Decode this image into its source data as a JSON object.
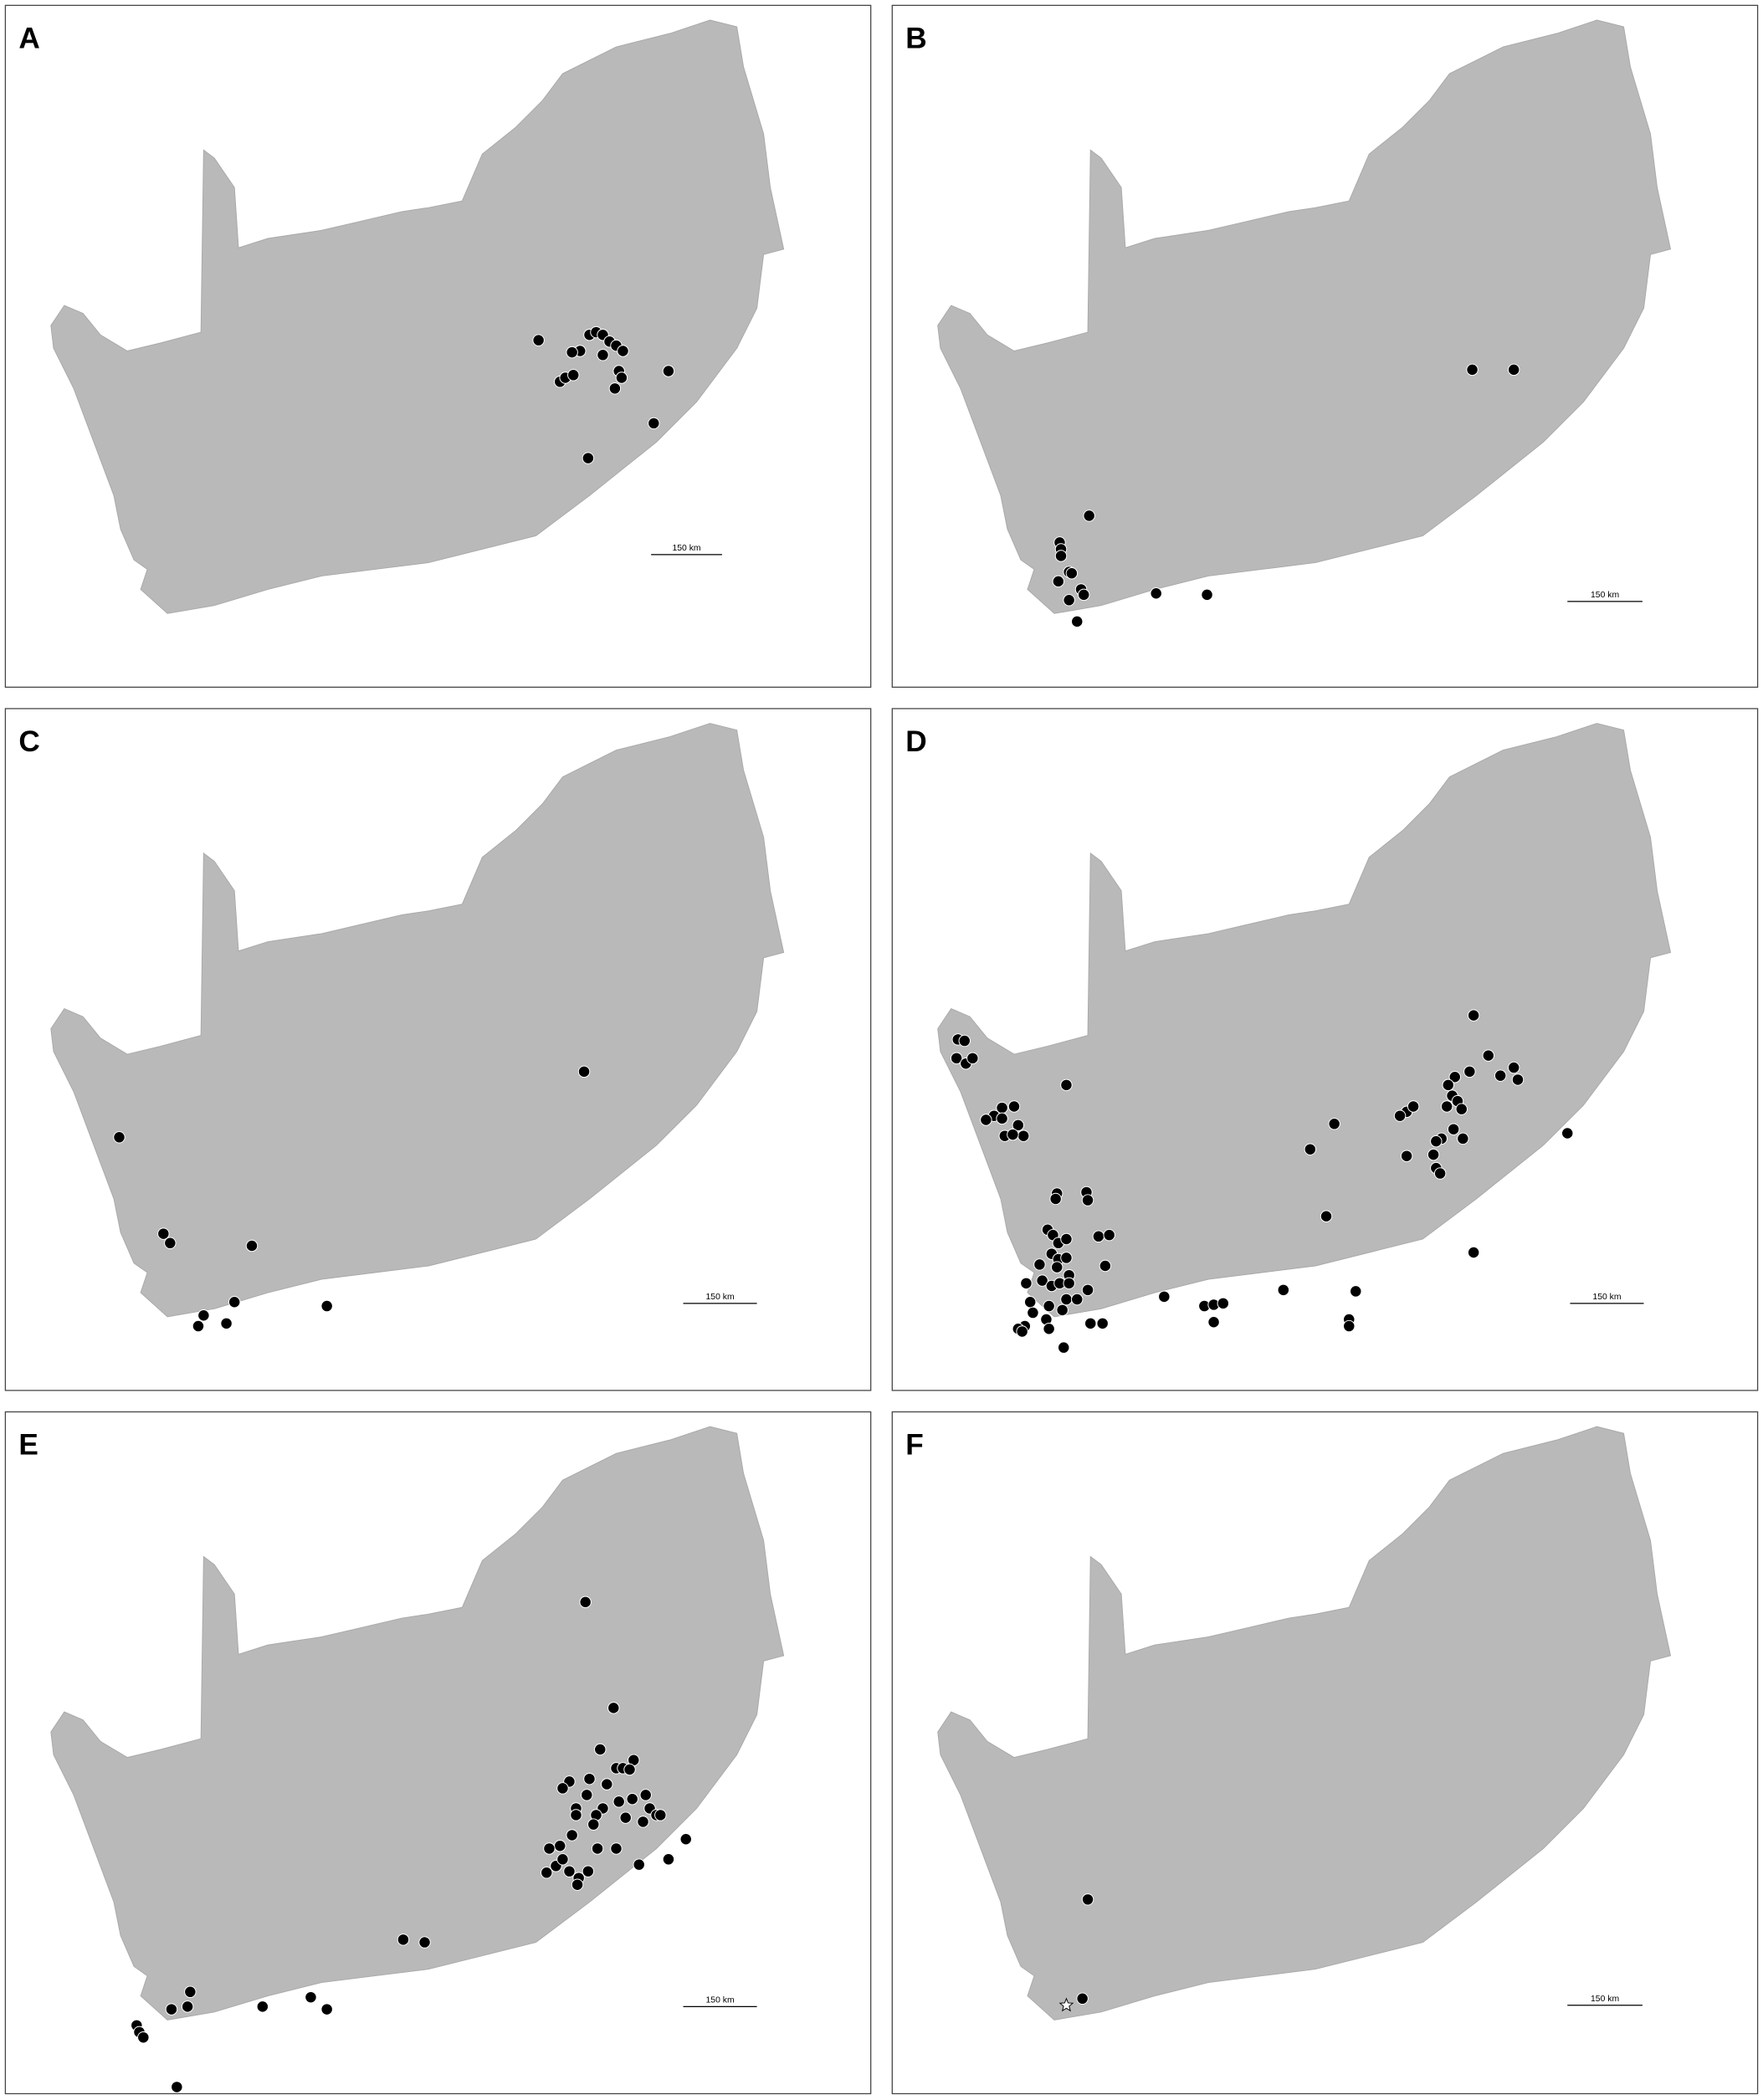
{
  "panels": [
    {
      "label": "A",
      "scale_bar": "150 km"
    },
    {
      "label": "B",
      "scale_bar": "150 km"
    },
    {
      "label": "C",
      "scale_bar": "150 km"
    },
    {
      "label": "D",
      "scale_bar": "150 km"
    },
    {
      "label": "E",
      "scale_bar": "150 km"
    },
    {
      "label": "F",
      "scale_bar": "150 km"
    }
  ]
}
